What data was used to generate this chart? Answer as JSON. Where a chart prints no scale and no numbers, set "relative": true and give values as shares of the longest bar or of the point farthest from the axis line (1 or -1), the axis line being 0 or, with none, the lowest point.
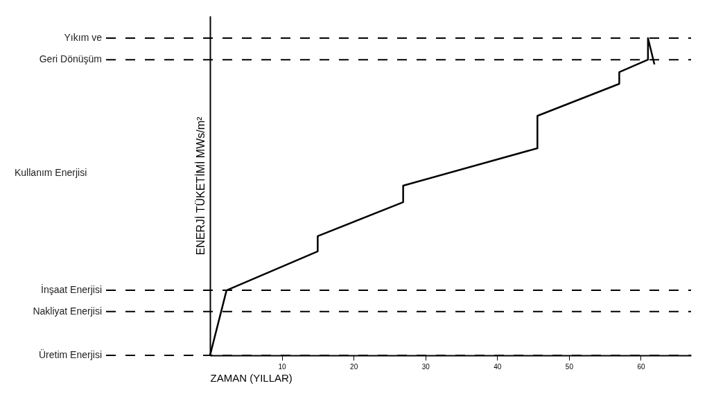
{
  "chart_data": {
    "type": "line",
    "relative": true,
    "xlabel": "ZAMAN (YILLAR)",
    "ylabel": "ENERJİ TÜKETİMİ MWs/m²",
    "x": [
      0,
      2.3,
      15,
      15,
      26.9,
      26.9,
      45.6,
      45.6,
      57,
      57,
      61,
      61,
      61.9
    ],
    "series": [
      {
        "color": "#000000",
        "values": [
          0,
          0.205,
          0.328,
          0.376,
          0.483,
          0.535,
          0.653,
          0.755,
          0.856,
          0.893,
          0.932,
          1,
          0.917
        ]
      }
    ],
    "xlim": [
      0,
      67
    ],
    "xticks": [
      10,
      20,
      30,
      40,
      50,
      60
    ],
    "ref_lines": [
      {
        "axis": "y",
        "value": 1,
        "label": "Yıkım ve",
        "line_style": "dashed"
      },
      {
        "axis": "y",
        "value": 0.932,
        "label": "Geri Dönüşüm",
        "line_style": "dashed"
      },
      {
        "axis": "y",
        "value": 0.205,
        "label": "İnşaat Enerjisi",
        "line_style": "dashed"
      },
      {
        "axis": "y",
        "value": 0.138,
        "label": "Nakliyat Enerjisi",
        "line_style": "dashed"
      },
      {
        "axis": "y",
        "value": 0,
        "label": "Üretim Enerjisi",
        "line_style": "dashed"
      }
    ],
    "annotations": [
      "Kullanım Enerjisi"
    ],
    "grid": false
  }
}
